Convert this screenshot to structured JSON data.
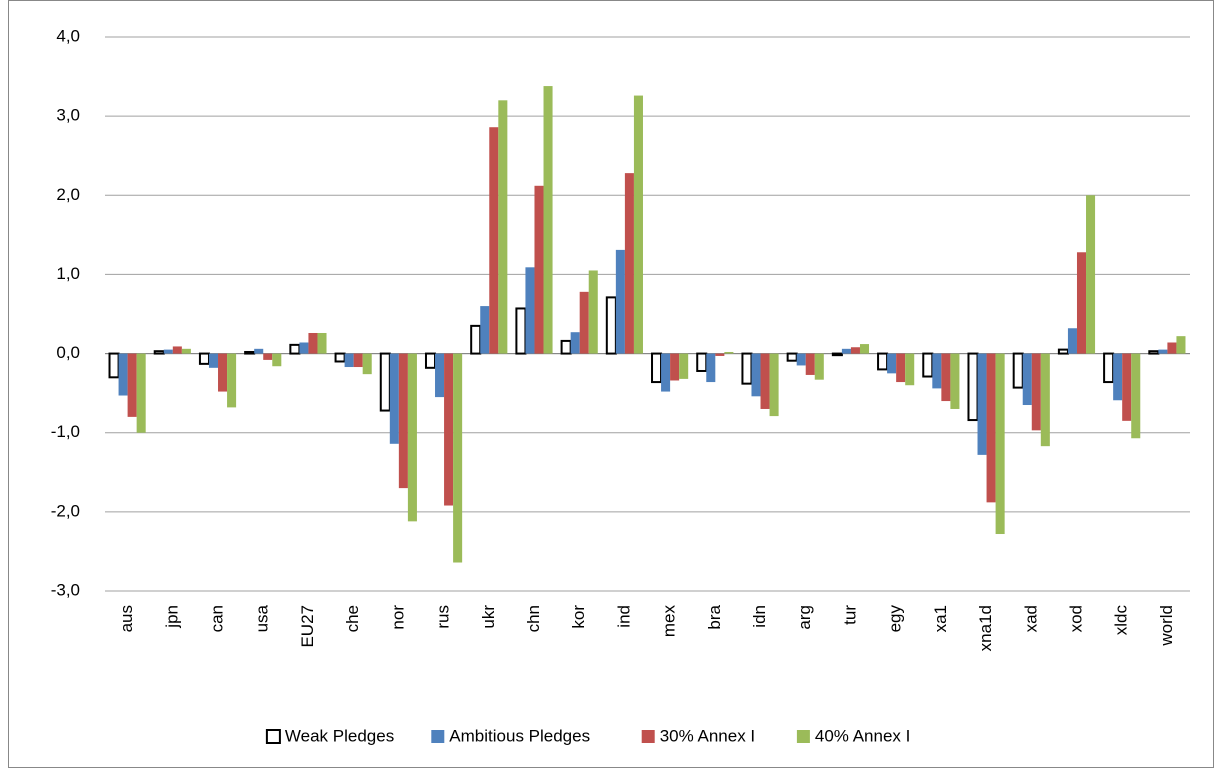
{
  "chart_data": {
    "type": "bar",
    "categories": [
      "aus",
      "jpn",
      "can",
      "usa",
      "EU27",
      "che",
      "nor",
      "rus",
      "ukr",
      "chn",
      "kor",
      "ind",
      "mex",
      "bra",
      "idn",
      "arg",
      "tur",
      "egy",
      "xa1",
      "xna1d",
      "xad",
      "xod",
      "xldc",
      "world"
    ],
    "series": [
      {
        "name": "Weak Pledges",
        "color": "#ffffff",
        "edgecolor": "#000000",
        "values": [
          -0.3,
          0.03,
          -0.13,
          0.02,
          0.11,
          -0.1,
          -0.72,
          -0.18,
          0.35,
          0.57,
          0.16,
          0.71,
          -0.36,
          -0.22,
          -0.38,
          -0.09,
          -0.02,
          -0.2,
          -0.29,
          -0.84,
          -0.43,
          0.05,
          -0.36,
          0.03
        ]
      },
      {
        "name": "Ambitious Pledges",
        "color": "#4f81bd",
        "values": [
          -0.53,
          0.05,
          -0.18,
          0.06,
          0.14,
          -0.17,
          -1.14,
          -0.55,
          0.6,
          1.09,
          0.27,
          1.31,
          -0.48,
          -0.36,
          -0.54,
          -0.15,
          0.06,
          -0.25,
          -0.44,
          -1.28,
          -0.65,
          0.32,
          -0.59,
          0.05
        ]
      },
      {
        "name": "30% Annex I",
        "color": "#c0504d",
        "values": [
          -0.8,
          0.09,
          -0.48,
          -0.08,
          0.26,
          -0.17,
          -1.7,
          -1.92,
          2.86,
          2.12,
          0.78,
          2.28,
          -0.34,
          -0.03,
          -0.7,
          -0.27,
          0.08,
          -0.36,
          -0.6,
          -1.88,
          -0.97,
          1.28,
          -0.85,
          0.14
        ]
      },
      {
        "name": "40% Annex I",
        "color": "#9bbb59",
        "values": [
          -1.0,
          0.06,
          -0.68,
          -0.16,
          0.26,
          -0.26,
          -2.12,
          -2.64,
          3.2,
          3.38,
          1.05,
          3.26,
          -0.32,
          0.02,
          -0.79,
          -0.33,
          0.12,
          -0.4,
          -0.7,
          -2.28,
          -1.17,
          2.0,
          -1.07,
          0.22
        ]
      }
    ],
    "ylim": [
      -3.0,
      4.0
    ],
    "yticks": [
      {
        "value": -3,
        "label": "-3,0"
      },
      {
        "value": -2,
        "label": "-2,0"
      },
      {
        "value": -1,
        "label": "-1,0"
      },
      {
        "value": 0,
        "label": "0,0"
      },
      {
        "value": 1,
        "label": "1,0"
      },
      {
        "value": 2,
        "label": "2,0"
      },
      {
        "value": 3,
        "label": "3,0"
      },
      {
        "value": 4,
        "label": "4,0"
      }
    ],
    "grid": true,
    "legend": "bottom"
  }
}
